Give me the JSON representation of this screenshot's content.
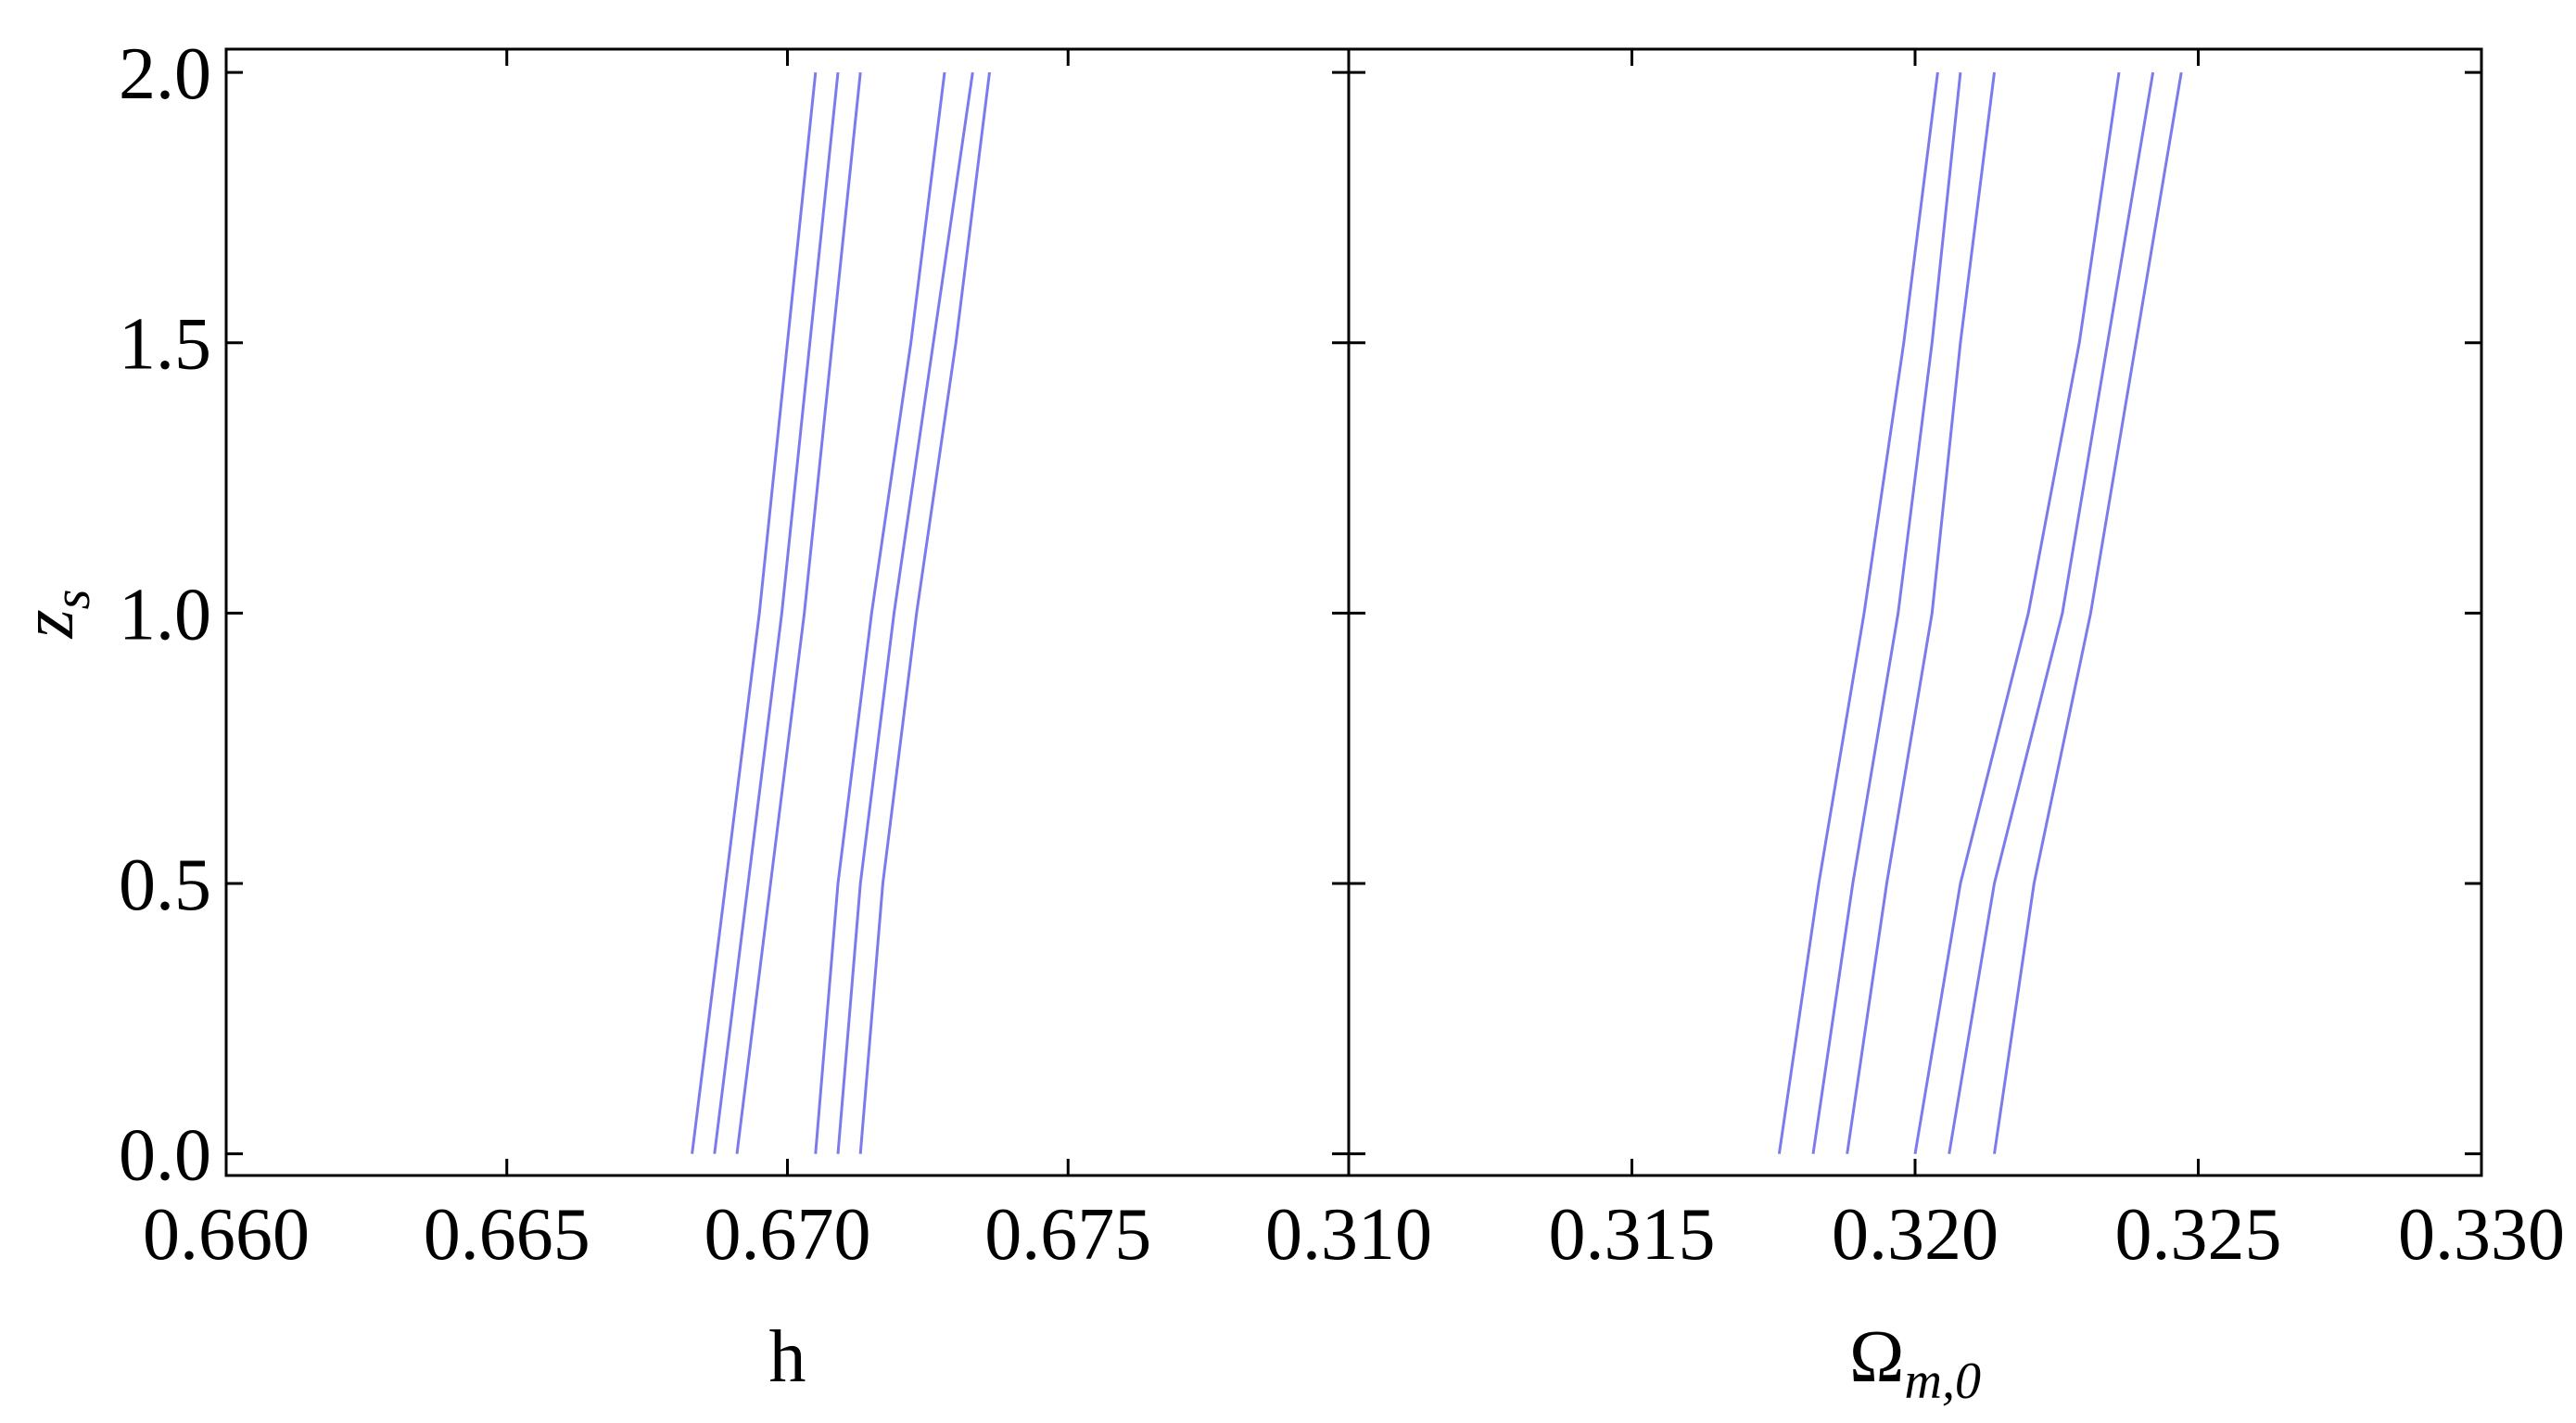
{
  "chart_data": [
    {
      "type": "line",
      "xlabel": "h",
      "ylabel": "z",
      "ylabel_sub": "s",
      "xlim": [
        0.66,
        0.68
      ],
      "ylim": [
        -0.04,
        2.043
      ],
      "xticks": [
        {
          "value": 0.66,
          "label": "0.660"
        },
        {
          "value": 0.665,
          "label": "0.665"
        },
        {
          "value": 0.67,
          "label": "0.670"
        },
        {
          "value": 0.675,
          "label": "0.675"
        }
      ],
      "yticks": [
        {
          "value": 0,
          "label": "0.0"
        },
        0.5,
        {
          "value": 1,
          "label": "1.0"
        },
        1.5,
        {
          "value": 2,
          "label": "2.0"
        }
      ],
      "series": [
        {
          "color": "#7b7bec",
          "x": [
            0.6683,
            0.6689,
            0.6695,
            0.67,
            0.6705
          ],
          "y": [
            0,
            0.5,
            1,
            1.5,
            2
          ]
        },
        {
          "color": "#7b7bec",
          "x": [
            0.6687,
            0.6693,
            0.6699,
            0.6704,
            0.6709
          ],
          "y": [
            0,
            0.5,
            1,
            1.5,
            2
          ]
        },
        {
          "color": "#7b7bec",
          "x": [
            0.6691,
            0.6697,
            0.6703,
            0.6708,
            0.6713
          ],
          "y": [
            0,
            0.5,
            1,
            1.5,
            2
          ]
        },
        {
          "color": "#7b7bec",
          "x": [
            0.6705,
            0.6709,
            0.6715,
            0.6722,
            0.6728
          ],
          "y": [
            0,
            0.5,
            1,
            1.5,
            2
          ]
        },
        {
          "color": "#7b7bec",
          "x": [
            0.6709,
            0.6713,
            0.6719,
            0.6726,
            0.6733
          ],
          "y": [
            0,
            0.5,
            1,
            1.5,
            2
          ]
        },
        {
          "color": "#7b7bec",
          "x": [
            0.6713,
            0.6717,
            0.6723,
            0.673,
            0.6736
          ],
          "y": [
            0,
            0.5,
            1,
            1.5,
            2
          ]
        }
      ]
    },
    {
      "type": "line",
      "xlabel": "Ω",
      "xlabel_sub": "m,0",
      "xlim": [
        0.31,
        0.33
      ],
      "ylim": [
        -0.04,
        2.043
      ],
      "xticks": [
        {
          "value": 0.31,
          "label": "0.310"
        },
        {
          "value": 0.315,
          "label": "0.315"
        },
        {
          "value": 0.32,
          "label": "0.320"
        },
        {
          "value": 0.325,
          "label": "0.325"
        },
        {
          "value": 0.33,
          "label": "0.330"
        }
      ],
      "yticks": [
        0,
        0.5,
        1,
        1.5,
        2
      ],
      "series": [
        {
          "color": "#7b7bec",
          "x": [
            0.3176,
            0.3183,
            0.3191,
            0.3198,
            0.3204
          ],
          "y": [
            0,
            0.5,
            1,
            1.5,
            2
          ]
        },
        {
          "color": "#7b7bec",
          "x": [
            0.3182,
            0.3189,
            0.3197,
            0.3203,
            0.3208
          ],
          "y": [
            0,
            0.5,
            1,
            1.5,
            2
          ]
        },
        {
          "color": "#7b7bec",
          "x": [
            0.3188,
            0.3195,
            0.3203,
            0.3208,
            0.3214
          ],
          "y": [
            0,
            0.5,
            1,
            1.5,
            2
          ]
        },
        {
          "color": "#7b7bec",
          "x": [
            0.32,
            0.3208,
            0.322,
            0.3229,
            0.3236
          ],
          "y": [
            0,
            0.5,
            1,
            1.5,
            2
          ]
        },
        {
          "color": "#7b7bec",
          "x": [
            0.3206,
            0.3214,
            0.3226,
            0.3234,
            0.3242
          ],
          "y": [
            0,
            0.5,
            1,
            1.5,
            2
          ]
        },
        {
          "color": "#7b7bec",
          "x": [
            0.3214,
            0.3221,
            0.3231,
            0.3239,
            0.3247
          ],
          "y": [
            0,
            0.5,
            1,
            1.5,
            2
          ]
        }
      ]
    }
  ]
}
